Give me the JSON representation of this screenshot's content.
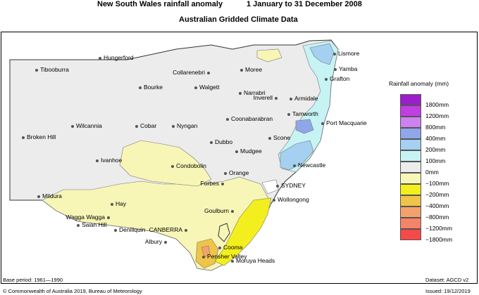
{
  "title": "New South Wales rainfall anomaly",
  "dates": "1 January to 31 December 2008",
  "subtitle": "Australian Gridded Climate Data",
  "legend": {
    "title": "Rainfall anomaly (mm)",
    "items": [
      {
        "label": "1800mm",
        "color": "#9b1fc9"
      },
      {
        "label": "1200mm",
        "color": "#c13ee0"
      },
      {
        "label": "800mm",
        "color": "#cc82f0"
      },
      {
        "label": "400mm",
        "color": "#8fa6ea"
      },
      {
        "label": "200mm",
        "color": "#a6d0f2"
      },
      {
        "label": "100mm",
        "color": "#c6f3f4"
      },
      {
        "label": "0mm",
        "color": "#ececec"
      },
      {
        "label": "−100mm",
        "color": "#f7f6b6"
      },
      {
        "label": "−200mm",
        "color": "#f3ef1e"
      },
      {
        "label": "−400mm",
        "color": "#f0c448"
      },
      {
        "label": "−800mm",
        "color": "#f3a36a"
      },
      {
        "label": "−1200mm",
        "color": "#f48467"
      },
      {
        "label": "−1800mm",
        "color": "#f44a4a"
      }
    ]
  },
  "places": [
    {
      "name": "Hungerford"
    },
    {
      "name": "Tibooburra"
    },
    {
      "name": "Bourke"
    },
    {
      "name": "Collarenebri"
    },
    {
      "name": "Moree"
    },
    {
      "name": "Walgett"
    },
    {
      "name": "Narrabri"
    },
    {
      "name": "Inverell"
    },
    {
      "name": "Armidale"
    },
    {
      "name": "Lismore"
    },
    {
      "name": "Yamba"
    },
    {
      "name": "Grafton"
    },
    {
      "name": "Tamworth"
    },
    {
      "name": "Coonabarabran"
    },
    {
      "name": "Port Macquarie"
    },
    {
      "name": "Wilcannia"
    },
    {
      "name": "Cobar"
    },
    {
      "name": "Nyngan"
    },
    {
      "name": "Broken Hill"
    },
    {
      "name": "Dubbo"
    },
    {
      "name": "Scone"
    },
    {
      "name": "Mudgee"
    },
    {
      "name": "Newcastle"
    },
    {
      "name": "Ivanhoe"
    },
    {
      "name": "Condobolin"
    },
    {
      "name": "Orange"
    },
    {
      "name": "Forbes"
    },
    {
      "name": "SYDNEY"
    },
    {
      "name": "Mildura"
    },
    {
      "name": "Wollongong"
    },
    {
      "name": "Hay"
    },
    {
      "name": "Goulburn"
    },
    {
      "name": "Wagga Wagga"
    },
    {
      "name": "Swan Hill"
    },
    {
      "name": "Deniliquin"
    },
    {
      "name": "CANBERRA"
    },
    {
      "name": "Albury"
    },
    {
      "name": "Cooma"
    },
    {
      "name": "Moruya Heads"
    },
    {
      "name": "Perisher Valley"
    }
  ],
  "footer": {
    "base_period": "Base period: 1961—1990",
    "dataset": "Dataset: AGCD v2",
    "copyright": "© Commonwealth of Australia 2019, Bureau of Meteorology",
    "issued": "Issued: 19/12/2019"
  }
}
